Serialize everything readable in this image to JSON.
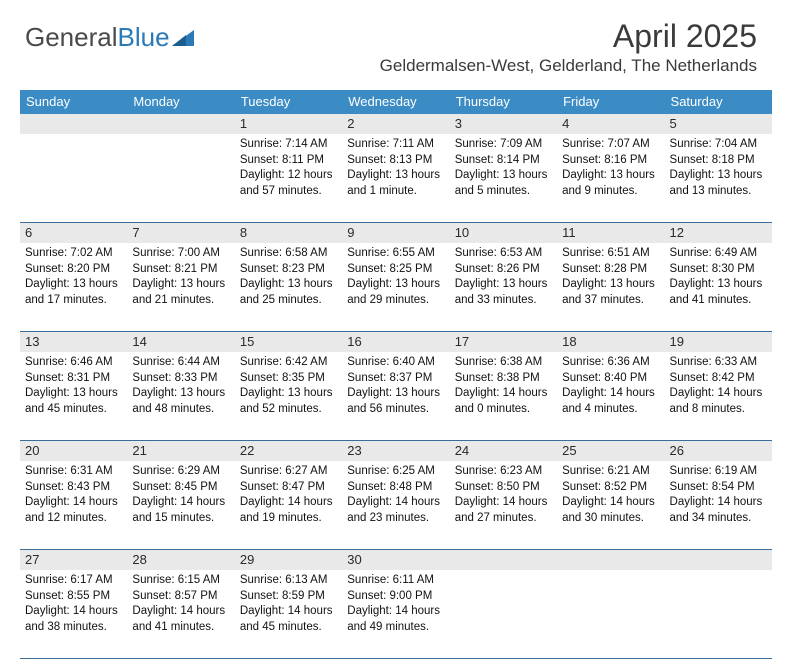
{
  "logo": {
    "text1": "General",
    "text2": "Blue"
  },
  "title": "April 2025",
  "subtitle": "Geldermalsen-West, Gelderland, The Netherlands",
  "colors": {
    "header_bg": "#3b8bc5",
    "header_fg": "#ffffff",
    "daynum_bg": "#e9e9e9",
    "rule": "#3a6e99",
    "title_color": "#3a3a3a",
    "logo_gray": "#4a4a4a",
    "logo_blue": "#2a7ab8"
  },
  "day_headers": [
    "Sunday",
    "Monday",
    "Tuesday",
    "Wednesday",
    "Thursday",
    "Friday",
    "Saturday"
  ],
  "weeks": [
    {
      "nums": [
        "",
        "",
        "1",
        "2",
        "3",
        "4",
        "5"
      ],
      "cells": [
        null,
        null,
        {
          "sunrise": "Sunrise: 7:14 AM",
          "sunset": "Sunset: 8:11 PM",
          "day1": "Daylight: 12 hours",
          "day2": "and 57 minutes."
        },
        {
          "sunrise": "Sunrise: 7:11 AM",
          "sunset": "Sunset: 8:13 PM",
          "day1": "Daylight: 13 hours",
          "day2": "and 1 minute."
        },
        {
          "sunrise": "Sunrise: 7:09 AM",
          "sunset": "Sunset: 8:14 PM",
          "day1": "Daylight: 13 hours",
          "day2": "and 5 minutes."
        },
        {
          "sunrise": "Sunrise: 7:07 AM",
          "sunset": "Sunset: 8:16 PM",
          "day1": "Daylight: 13 hours",
          "day2": "and 9 minutes."
        },
        {
          "sunrise": "Sunrise: 7:04 AM",
          "sunset": "Sunset: 8:18 PM",
          "day1": "Daylight: 13 hours",
          "day2": "and 13 minutes."
        }
      ]
    },
    {
      "nums": [
        "6",
        "7",
        "8",
        "9",
        "10",
        "11",
        "12"
      ],
      "cells": [
        {
          "sunrise": "Sunrise: 7:02 AM",
          "sunset": "Sunset: 8:20 PM",
          "day1": "Daylight: 13 hours",
          "day2": "and 17 minutes."
        },
        {
          "sunrise": "Sunrise: 7:00 AM",
          "sunset": "Sunset: 8:21 PM",
          "day1": "Daylight: 13 hours",
          "day2": "and 21 minutes."
        },
        {
          "sunrise": "Sunrise: 6:58 AM",
          "sunset": "Sunset: 8:23 PM",
          "day1": "Daylight: 13 hours",
          "day2": "and 25 minutes."
        },
        {
          "sunrise": "Sunrise: 6:55 AM",
          "sunset": "Sunset: 8:25 PM",
          "day1": "Daylight: 13 hours",
          "day2": "and 29 minutes."
        },
        {
          "sunrise": "Sunrise: 6:53 AM",
          "sunset": "Sunset: 8:26 PM",
          "day1": "Daylight: 13 hours",
          "day2": "and 33 minutes."
        },
        {
          "sunrise": "Sunrise: 6:51 AM",
          "sunset": "Sunset: 8:28 PM",
          "day1": "Daylight: 13 hours",
          "day2": "and 37 minutes."
        },
        {
          "sunrise": "Sunrise: 6:49 AM",
          "sunset": "Sunset: 8:30 PM",
          "day1": "Daylight: 13 hours",
          "day2": "and 41 minutes."
        }
      ]
    },
    {
      "nums": [
        "13",
        "14",
        "15",
        "16",
        "17",
        "18",
        "19"
      ],
      "cells": [
        {
          "sunrise": "Sunrise: 6:46 AM",
          "sunset": "Sunset: 8:31 PM",
          "day1": "Daylight: 13 hours",
          "day2": "and 45 minutes."
        },
        {
          "sunrise": "Sunrise: 6:44 AM",
          "sunset": "Sunset: 8:33 PM",
          "day1": "Daylight: 13 hours",
          "day2": "and 48 minutes."
        },
        {
          "sunrise": "Sunrise: 6:42 AM",
          "sunset": "Sunset: 8:35 PM",
          "day1": "Daylight: 13 hours",
          "day2": "and 52 minutes."
        },
        {
          "sunrise": "Sunrise: 6:40 AM",
          "sunset": "Sunset: 8:37 PM",
          "day1": "Daylight: 13 hours",
          "day2": "and 56 minutes."
        },
        {
          "sunrise": "Sunrise: 6:38 AM",
          "sunset": "Sunset: 8:38 PM",
          "day1": "Daylight: 14 hours",
          "day2": "and 0 minutes."
        },
        {
          "sunrise": "Sunrise: 6:36 AM",
          "sunset": "Sunset: 8:40 PM",
          "day1": "Daylight: 14 hours",
          "day2": "and 4 minutes."
        },
        {
          "sunrise": "Sunrise: 6:33 AM",
          "sunset": "Sunset: 8:42 PM",
          "day1": "Daylight: 14 hours",
          "day2": "and 8 minutes."
        }
      ]
    },
    {
      "nums": [
        "20",
        "21",
        "22",
        "23",
        "24",
        "25",
        "26"
      ],
      "cells": [
        {
          "sunrise": "Sunrise: 6:31 AM",
          "sunset": "Sunset: 8:43 PM",
          "day1": "Daylight: 14 hours",
          "day2": "and 12 minutes."
        },
        {
          "sunrise": "Sunrise: 6:29 AM",
          "sunset": "Sunset: 8:45 PM",
          "day1": "Daylight: 14 hours",
          "day2": "and 15 minutes."
        },
        {
          "sunrise": "Sunrise: 6:27 AM",
          "sunset": "Sunset: 8:47 PM",
          "day1": "Daylight: 14 hours",
          "day2": "and 19 minutes."
        },
        {
          "sunrise": "Sunrise: 6:25 AM",
          "sunset": "Sunset: 8:48 PM",
          "day1": "Daylight: 14 hours",
          "day2": "and 23 minutes."
        },
        {
          "sunrise": "Sunrise: 6:23 AM",
          "sunset": "Sunset: 8:50 PM",
          "day1": "Daylight: 14 hours",
          "day2": "and 27 minutes."
        },
        {
          "sunrise": "Sunrise: 6:21 AM",
          "sunset": "Sunset: 8:52 PM",
          "day1": "Daylight: 14 hours",
          "day2": "and 30 minutes."
        },
        {
          "sunrise": "Sunrise: 6:19 AM",
          "sunset": "Sunset: 8:54 PM",
          "day1": "Daylight: 14 hours",
          "day2": "and 34 minutes."
        }
      ]
    },
    {
      "nums": [
        "27",
        "28",
        "29",
        "30",
        "",
        "",
        ""
      ],
      "cells": [
        {
          "sunrise": "Sunrise: 6:17 AM",
          "sunset": "Sunset: 8:55 PM",
          "day1": "Daylight: 14 hours",
          "day2": "and 38 minutes."
        },
        {
          "sunrise": "Sunrise: 6:15 AM",
          "sunset": "Sunset: 8:57 PM",
          "day1": "Daylight: 14 hours",
          "day2": "and 41 minutes."
        },
        {
          "sunrise": "Sunrise: 6:13 AM",
          "sunset": "Sunset: 8:59 PM",
          "day1": "Daylight: 14 hours",
          "day2": "and 45 minutes."
        },
        {
          "sunrise": "Sunrise: 6:11 AM",
          "sunset": "Sunset: 9:00 PM",
          "day1": "Daylight: 14 hours",
          "day2": "and 49 minutes."
        },
        null,
        null,
        null
      ]
    }
  ]
}
